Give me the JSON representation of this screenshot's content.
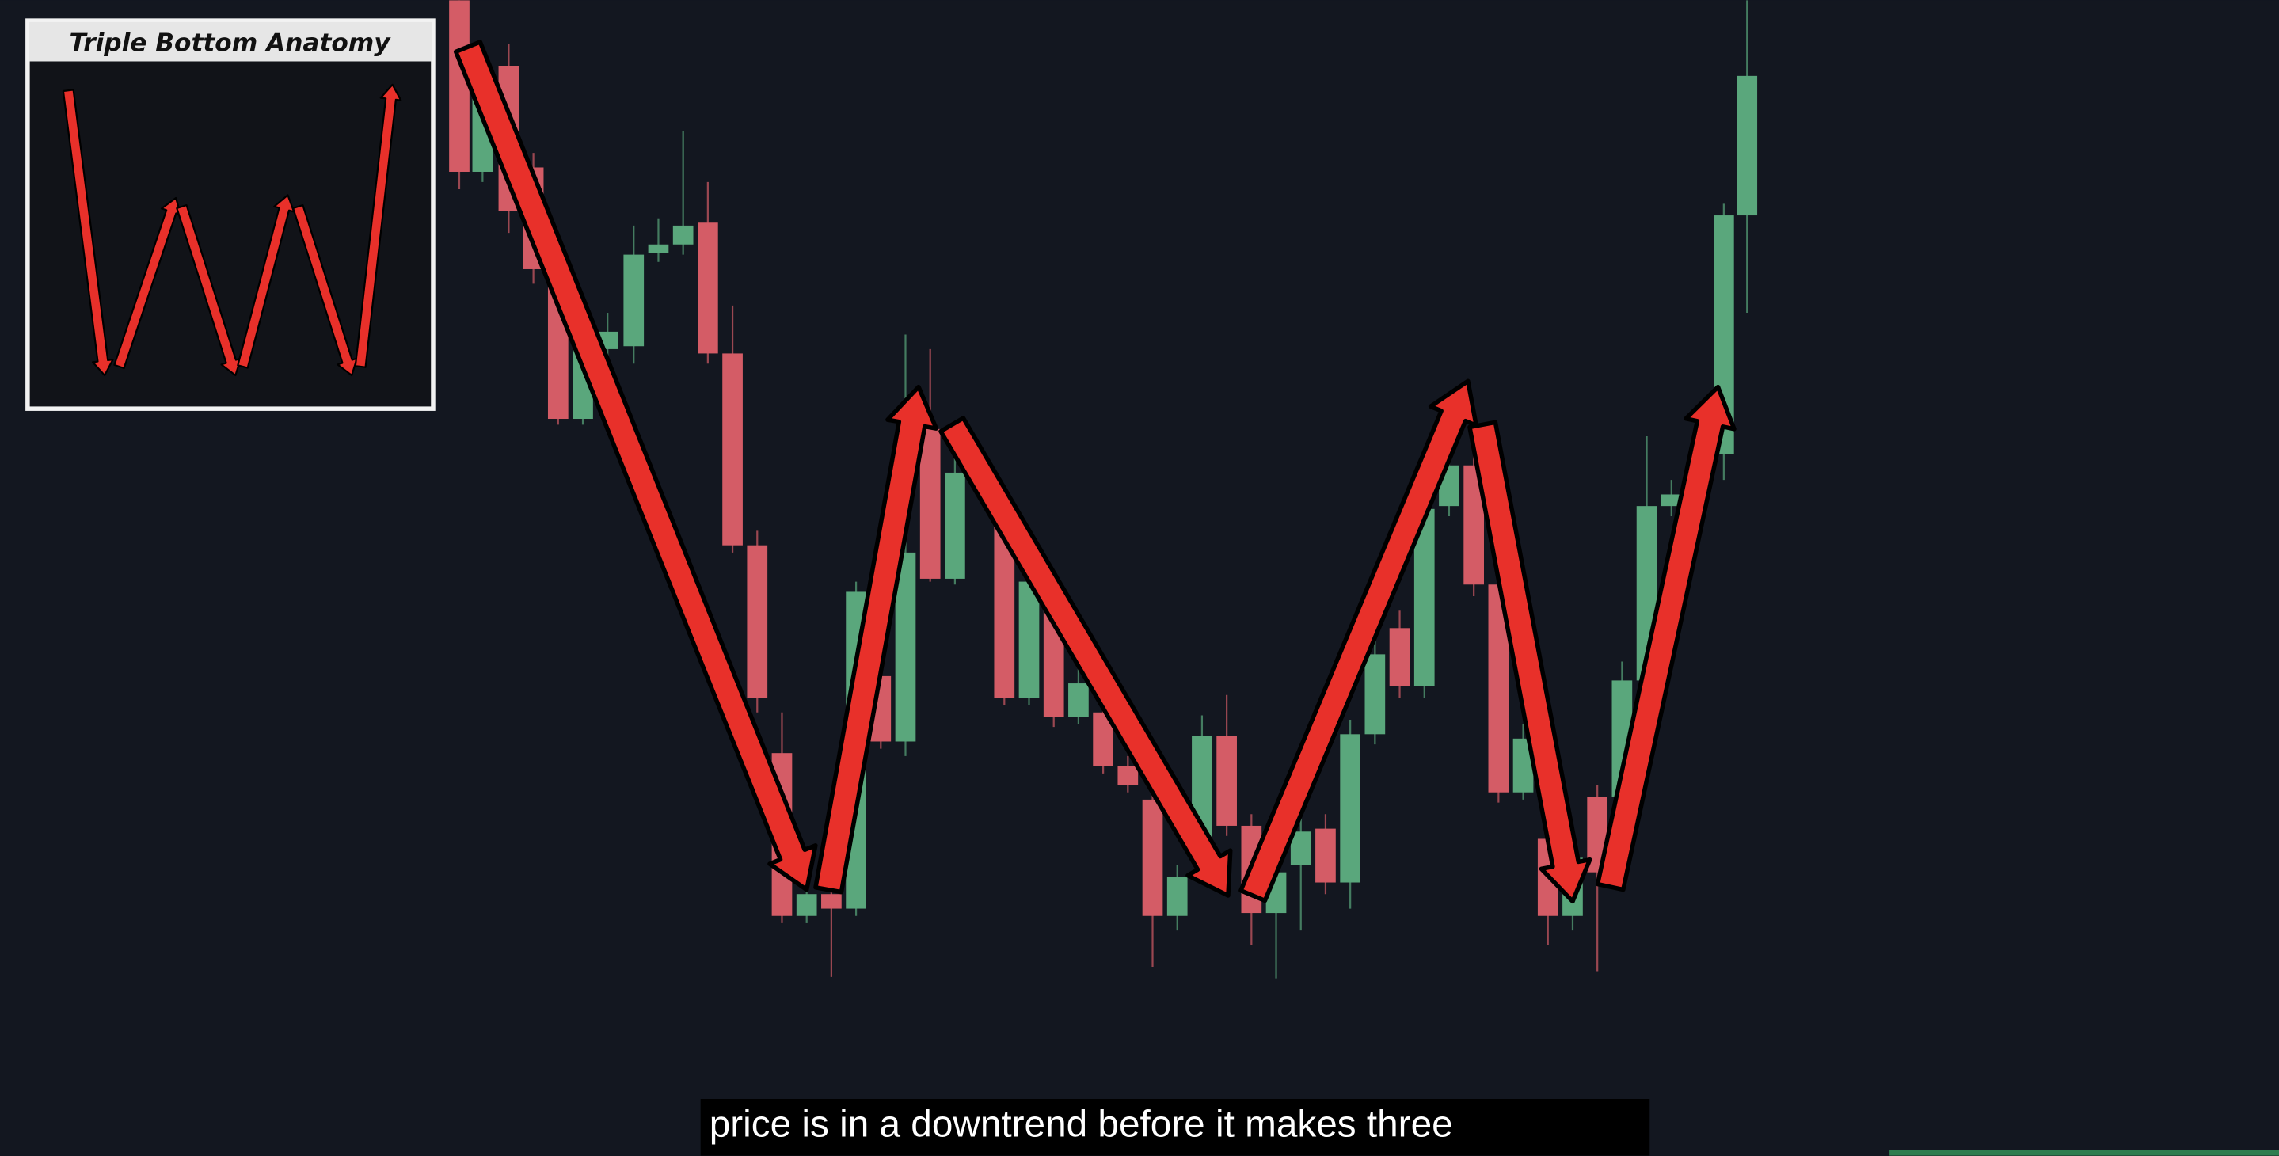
{
  "inset": {
    "title": "Triple Bottom Anatomy"
  },
  "caption": {
    "text": "price is in a downtrend before it makes three"
  }
}
